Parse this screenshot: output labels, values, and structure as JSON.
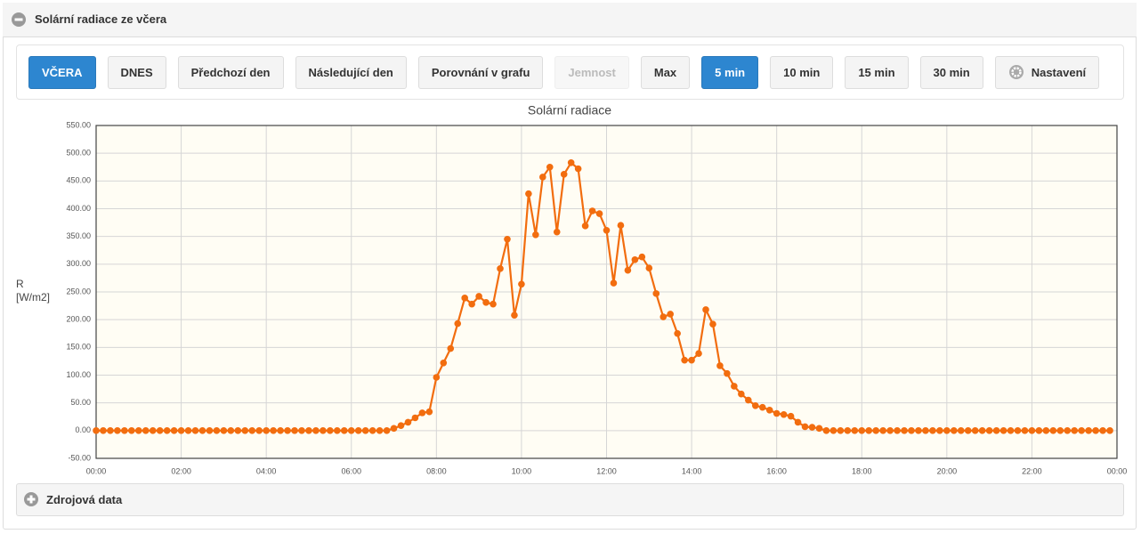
{
  "panel": {
    "title": "Solární radiace ze včera",
    "footer": "Zdrojová data"
  },
  "toolbar": {
    "buttons": [
      "VČERA",
      "DNES",
      "Předchozí den",
      "Následující den",
      "Porovnání v grafu",
      "Jemnost",
      "Max",
      "5 min",
      "10 min",
      "15 min",
      "30 min",
      "Nastavení"
    ]
  },
  "chart_data": {
    "type": "line",
    "title": "Solární radiace",
    "y_label": "R [W/m2]",
    "color": "#f26d0f",
    "grid": true,
    "x": [
      0,
      10,
      20,
      30,
      40,
      50,
      60,
      70,
      80,
      90,
      100,
      110,
      120,
      130,
      140,
      150,
      160,
      170,
      180,
      190,
      200,
      210,
      220,
      230,
      240,
      250,
      260,
      270,
      280,
      290,
      300,
      310,
      320,
      330,
      340,
      350,
      360,
      370,
      380,
      390,
      400,
      410,
      420,
      430,
      440,
      450,
      460,
      470,
      480,
      490,
      500,
      510,
      520,
      530,
      540,
      550,
      560,
      570,
      580,
      590,
      600,
      610,
      620,
      630,
      640,
      650,
      660,
      670,
      680,
      690,
      700,
      710,
      720,
      730,
      740,
      750,
      760,
      770,
      780,
      790,
      800,
      810,
      820,
      830,
      840,
      850,
      860,
      870,
      880,
      890,
      900,
      910,
      920,
      930,
      940,
      950,
      960,
      970,
      980,
      990,
      1000,
      1010,
      1020,
      1030,
      1040,
      1050,
      1060,
      1070,
      1080,
      1090,
      1100,
      1110,
      1120,
      1130,
      1140,
      1150,
      1160,
      1170,
      1180,
      1190,
      1200,
      1210,
      1220,
      1230,
      1240,
      1250,
      1260,
      1270,
      1280,
      1290,
      1300,
      1310,
      1320,
      1330,
      1340,
      1350,
      1360,
      1370,
      1380,
      1390,
      1400,
      1410,
      1420,
      1430
    ],
    "values": [
      0,
      0,
      0,
      0,
      0,
      0,
      0,
      0,
      0,
      0,
      0,
      0,
      0,
      0,
      0,
      0,
      0,
      0,
      0,
      0,
      0,
      0,
      0,
      0,
      0,
      0,
      0,
      0,
      0,
      0,
      0,
      0,
      0,
      0,
      0,
      0,
      0,
      0,
      0,
      0,
      0,
      0,
      4,
      9,
      15,
      23,
      32,
      34,
      96,
      122,
      148,
      193,
      239,
      228,
      242,
      231,
      228,
      292,
      345,
      208,
      264,
      427,
      353,
      457,
      475,
      358,
      462,
      483,
      472,
      369,
      396,
      391,
      361,
      266,
      370,
      289,
      308,
      313,
      293,
      247,
      205,
      210,
      175,
      127,
      127,
      139,
      218,
      192,
      117,
      103,
      80,
      66,
      55,
      45,
      42,
      37,
      31,
      29,
      26,
      15,
      7,
      6,
      4,
      0,
      0,
      0,
      0,
      0,
      0,
      0,
      0,
      0,
      0,
      0,
      0,
      0,
      0,
      0,
      0,
      0,
      0,
      0,
      0,
      0,
      0,
      0,
      0,
      0,
      0,
      0,
      0,
      0,
      0,
      0,
      0,
      0,
      0,
      0,
      0,
      0,
      0,
      0,
      0,
      0
    ],
    "xlim": [
      0,
      1440
    ],
    "xticks": [
      {
        "value": 0,
        "label": "00:00"
      },
      {
        "value": 120,
        "label": "02:00"
      },
      {
        "value": 240,
        "label": "04:00"
      },
      {
        "value": 360,
        "label": "06:00"
      },
      {
        "value": 480,
        "label": "08:00"
      },
      {
        "value": 600,
        "label": "10:00"
      },
      {
        "value": 720,
        "label": "12:00"
      },
      {
        "value": 840,
        "label": "14:00"
      },
      {
        "value": 960,
        "label": "16:00"
      },
      {
        "value": 1080,
        "label": "18:00"
      },
      {
        "value": 1200,
        "label": "20:00"
      },
      {
        "value": 1320,
        "label": "22:00"
      },
      {
        "value": 1440,
        "label": "00:00"
      }
    ],
    "ylim": [
      -50,
      550
    ],
    "yticks": [
      {
        "value": -50,
        "label": "-50.00"
      },
      {
        "value": 0,
        "label": "0.00"
      },
      {
        "value": 50,
        "label": "50.00"
      },
      {
        "value": 100,
        "label": "100.00"
      },
      {
        "value": 150,
        "label": "150.00"
      },
      {
        "value": 200,
        "label": "200.00"
      },
      {
        "value": 250,
        "label": "250.00"
      },
      {
        "value": 300,
        "label": "300.00"
      },
      {
        "value": 350,
        "label": "350.00"
      },
      {
        "value": 400,
        "label": "400.00"
      },
      {
        "value": 450,
        "label": "450.00"
      },
      {
        "value": 500,
        "label": "500.00"
      },
      {
        "value": 550,
        "label": "550.00"
      }
    ]
  }
}
